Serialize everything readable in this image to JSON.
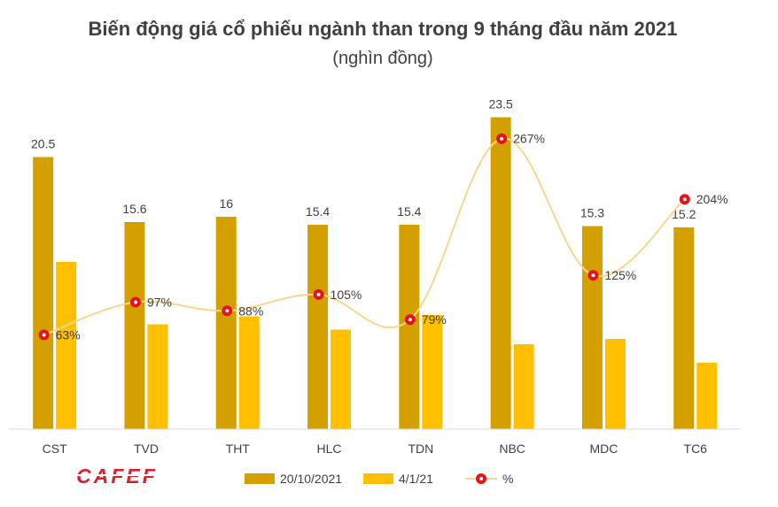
{
  "chart_data": {
    "type": "bar",
    "title": "Biến động giá cổ phiếu ngành than trong 9 tháng đầu năm 2021",
    "subtitle": "(nghìn đồng)",
    "categories": [
      "CST",
      "TVD",
      "THT",
      "HLC",
      "TDN",
      "NBC",
      "MDC",
      "TC6"
    ],
    "series": [
      {
        "name": "20/10/2021",
        "type": "bar",
        "color": "#D4A000",
        "values": [
          20.5,
          15.6,
          16,
          15.4,
          15.4,
          23.5,
          15.3,
          15.2
        ],
        "labels": [
          "20.5",
          "15.6",
          "16",
          "15.4",
          "15.4",
          "23.5",
          "15.3",
          "15.2"
        ]
      },
      {
        "name": "4/1/21",
        "type": "bar",
        "color": "#FFC000",
        "values": [
          12.6,
          7.9,
          8.5,
          7.5,
          8.6,
          6.4,
          6.8,
          5.0
        ]
      },
      {
        "name": "%",
        "type": "line",
        "color": "#F8D78A",
        "marker_color": "#E8101A",
        "values": [
          63,
          97,
          88,
          105,
          79,
          267,
          125,
          204
        ],
        "labels": [
          "63%",
          "97%",
          "88%",
          "105%",
          "79%",
          "267%",
          "125%",
          "204%"
        ]
      }
    ],
    "ylim": [
      0,
      25
    ],
    "y2lim": [
      -35,
      310
    ],
    "grid": false,
    "legend_position": "bottom"
  },
  "logo": {
    "text": "CAFEF"
  }
}
